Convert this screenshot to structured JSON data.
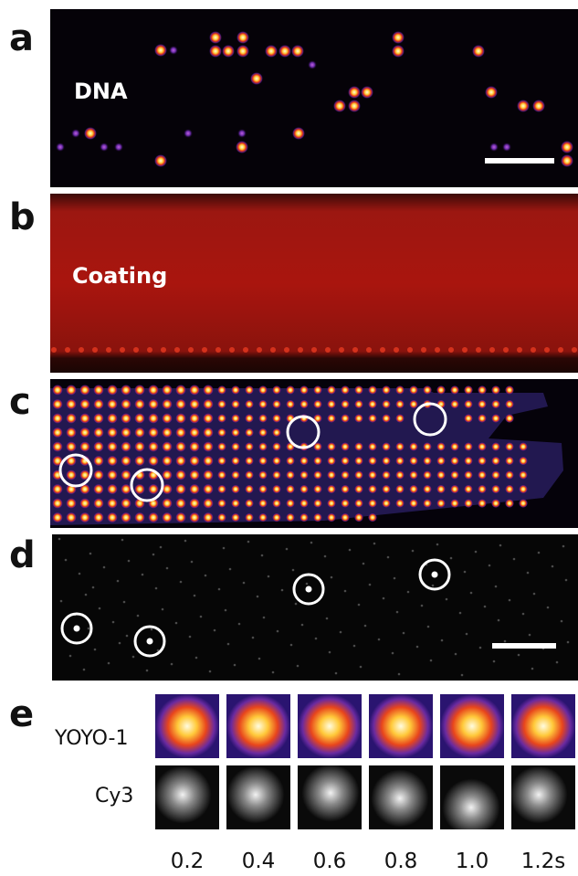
{
  "panels": {
    "a": {
      "letter": "a",
      "label": "DNA"
    },
    "b": {
      "letter": "b",
      "label": "Coating"
    },
    "c": {
      "letter": "c"
    },
    "d": {
      "letter": "d"
    },
    "e": {
      "letter": "e",
      "rows": [
        "YOYO-1",
        "Cy3"
      ],
      "times": [
        "0.2",
        "0.4",
        "0.6",
        "0.8",
        "1.0",
        "1.2s"
      ]
    }
  },
  "colors": {
    "fire_dark": "#0b0210",
    "fire_purple": "#4b1f8a",
    "fire_red": "#e83018",
    "fire_yellow": "#ffd43a",
    "coating_red": "#a3140e",
    "circle": "#ffffff"
  }
}
